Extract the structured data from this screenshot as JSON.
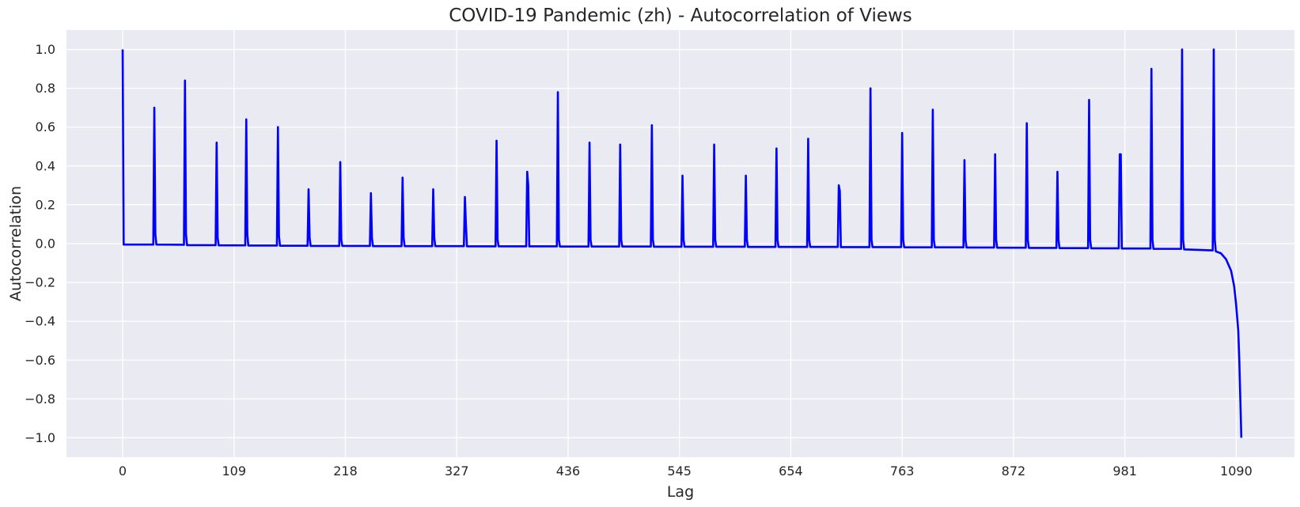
{
  "chart_data": {
    "type": "line",
    "title": "COVID-19 Pandemic (zh) - Autocorrelation of Views",
    "xlabel": "Lag",
    "ylabel": "Autocorrelation",
    "xlim": [
      -55,
      1147
    ],
    "ylim": [
      -1.1,
      1.1
    ],
    "x_ticks": [
      0,
      109,
      218,
      327,
      436,
      545,
      654,
      763,
      872,
      981,
      1090
    ],
    "x_tick_labels": [
      "0",
      "109",
      "218",
      "327",
      "436",
      "545",
      "654",
      "763",
      "872",
      "981",
      "1090"
    ],
    "y_ticks": [
      1.0,
      0.8,
      0.6,
      0.4,
      0.2,
      0.0,
      -0.2,
      -0.4,
      -0.6,
      -0.8,
      -1.0
    ],
    "y_tick_labels": [
      "1.0",
      "0.8",
      "0.6",
      "0.4",
      "0.2",
      "0.0",
      "−0.2",
      "−0.4",
      "−0.6",
      "−0.8",
      "−1.0"
    ],
    "grid": true,
    "background": "#eaeaf2",
    "gridline_color": "#ffffff",
    "series": [
      {
        "color": "#0000ff",
        "x": [
          0,
          1,
          30,
          31,
          32,
          33,
          60,
          61,
          62,
          63,
          91,
          92,
          93,
          94,
          120,
          121,
          122,
          123,
          151,
          152,
          153,
          154,
          181,
          182,
          183,
          184,
          212,
          213,
          214,
          215,
          242,
          243,
          244,
          245,
          273,
          274,
          275,
          276,
          303,
          304,
          305,
          306,
          334,
          335,
          336,
          337,
          365,
          366,
          367,
          368,
          395,
          396,
          397,
          398,
          425,
          426,
          427,
          428,
          456,
          457,
          458,
          459,
          486,
          487,
          488,
          489,
          517,
          518,
          519,
          520,
          547,
          548,
          549,
          550,
          578,
          579,
          580,
          581,
          609,
          610,
          611,
          612,
          639,
          640,
          641,
          642,
          670,
          671,
          672,
          673,
          700,
          701,
          702,
          703,
          731,
          732,
          733,
          734,
          762,
          763,
          764,
          765,
          792,
          793,
          794,
          795,
          823,
          824,
          825,
          826,
          853,
          854,
          855,
          856,
          884,
          885,
          886,
          887,
          914,
          915,
          916,
          917,
          945,
          946,
          947,
          948,
          975,
          976,
          977,
          978,
          1006,
          1007,
          1008,
          1009,
          1036,
          1037,
          1038,
          1039,
          1067,
          1068,
          1069,
          1070,
          1075,
          1080,
          1085,
          1088,
          1090,
          1092,
          1093,
          1094,
          1095
        ],
        "values": [
          1.0,
          -0.005,
          -0.005,
          0.7,
          0.05,
          -0.005,
          -0.006,
          0.84,
          0.05,
          -0.008,
          -0.008,
          0.52,
          0.03,
          -0.009,
          -0.009,
          0.64,
          0.05,
          -0.01,
          -0.01,
          0.6,
          0.04,
          -0.011,
          -0.011,
          0.28,
          0.03,
          -0.012,
          -0.012,
          0.42,
          0.02,
          -0.012,
          -0.012,
          0.26,
          0.03,
          -0.013,
          -0.013,
          0.34,
          0.03,
          -0.013,
          -0.013,
          0.28,
          0.03,
          -0.013,
          -0.013,
          0.24,
          0.1,
          -0.014,
          -0.014,
          0.53,
          0.02,
          -0.014,
          -0.014,
          0.37,
          0.3,
          -0.014,
          -0.014,
          0.78,
          0.02,
          -0.015,
          -0.015,
          0.52,
          0.02,
          -0.015,
          -0.015,
          0.51,
          0.02,
          -0.015,
          -0.015,
          0.61,
          0.02,
          -0.016,
          -0.016,
          0.35,
          0.02,
          -0.016,
          -0.016,
          0.51,
          0.02,
          -0.016,
          -0.016,
          0.35,
          0.02,
          -0.017,
          -0.017,
          0.49,
          0.02,
          -0.017,
          -0.017,
          0.54,
          0.02,
          -0.017,
          -0.017,
          0.3,
          0.27,
          -0.018,
          -0.018,
          0.8,
          0.02,
          -0.018,
          -0.018,
          0.57,
          0.02,
          -0.019,
          -0.019,
          0.69,
          0.02,
          -0.019,
          -0.019,
          0.43,
          0.02,
          -0.02,
          -0.02,
          0.46,
          0.02,
          -0.021,
          -0.021,
          0.62,
          0.02,
          -0.022,
          -0.022,
          0.37,
          0.02,
          -0.023,
          -0.023,
          0.74,
          0.02,
          -0.024,
          -0.024,
          0.46,
          0.46,
          -0.025,
          -0.025,
          0.9,
          0.02,
          -0.027,
          -0.027,
          1.0,
          0.02,
          -0.03,
          -0.035,
          1.0,
          0.02,
          -0.04,
          -0.05,
          -0.08,
          -0.14,
          -0.22,
          -0.32,
          -0.45,
          -0.6,
          -0.8,
          -1.0
        ]
      }
    ]
  }
}
